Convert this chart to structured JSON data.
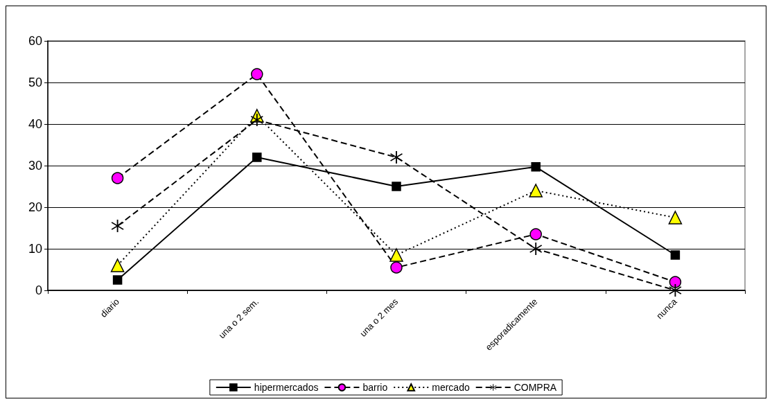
{
  "chart_data": {
    "type": "line",
    "categories": [
      "diario",
      "una o 2 sem.",
      "una o 2 mes",
      "esporadicamente",
      "nunca"
    ],
    "series": [
      {
        "name": "hipermercados",
        "color": "#000000",
        "marker": "square",
        "line_style": "solid",
        "values": [
          2.5,
          32,
          25,
          29.7,
          8.5
        ]
      },
      {
        "name": "barrio",
        "color": "#ff00ff",
        "marker": "circle",
        "line_style": "dashed",
        "values": [
          27,
          52,
          5.5,
          13.5,
          2
        ]
      },
      {
        "name": "mercado",
        "color": "#ffff00",
        "marker": "triangle",
        "line_style": "dotted",
        "values": [
          6,
          42,
          8.5,
          24,
          17.5
        ]
      },
      {
        "name": "COMPRA",
        "color": "#000000",
        "marker": "cross",
        "line_style": "dashed",
        "values": [
          15.5,
          41,
          32,
          10,
          0
        ]
      }
    ],
    "ylim": [
      0,
      60
    ],
    "yticks": [
      0,
      10,
      20,
      30,
      40,
      50,
      60
    ],
    "grid": "y",
    "legend": "bottom"
  }
}
